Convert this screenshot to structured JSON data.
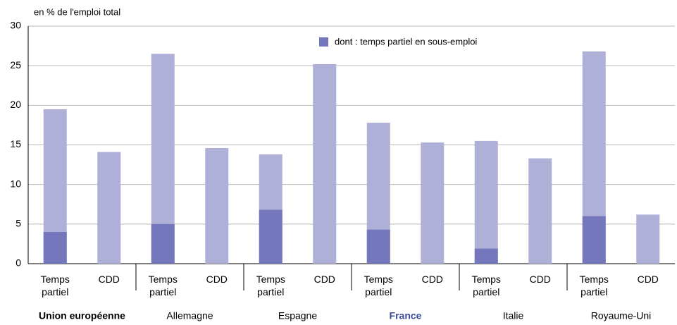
{
  "chart_data": {
    "type": "bar",
    "axis_label": "en % de l'emploi total",
    "categories": [
      "Temps partiel",
      "CDD",
      "Temps partiel",
      "CDD",
      "Temps partiel",
      "CDD",
      "Temps partiel",
      "CDD",
      "Temps partiel",
      "CDD",
      "Temps partiel",
      "CDD"
    ],
    "groups": [
      {
        "name": "Union européenne",
        "bold": true,
        "color": "#000000"
      },
      {
        "name": "Allemagne",
        "bold": false,
        "color": "#000000"
      },
      {
        "name": "Espagne",
        "bold": false,
        "color": "#000000"
      },
      {
        "name": "France",
        "bold": true,
        "color": "#3a4a9a"
      },
      {
        "name": "Italie",
        "bold": false,
        "color": "#000000"
      },
      {
        "name": "Royaume-Uni",
        "bold": false,
        "color": "#000000"
      }
    ],
    "series": [
      {
        "color": "#aeb0d8",
        "values": [
          19.5,
          14.1,
          26.5,
          14.6,
          13.8,
          25.2,
          17.8,
          15.3,
          15.5,
          13.3,
          26.8,
          6.2
        ]
      },
      {
        "name": "dont : temps partiel en sous-emploi",
        "color": "#7477bb",
        "values": [
          4.0,
          null,
          5.0,
          null,
          6.8,
          null,
          4.3,
          null,
          1.9,
          null,
          6.0,
          null
        ]
      }
    ],
    "ylim": [
      0,
      30
    ],
    "yticks": [
      0,
      5,
      10,
      15,
      20,
      25,
      30
    ],
    "grid": true
  }
}
